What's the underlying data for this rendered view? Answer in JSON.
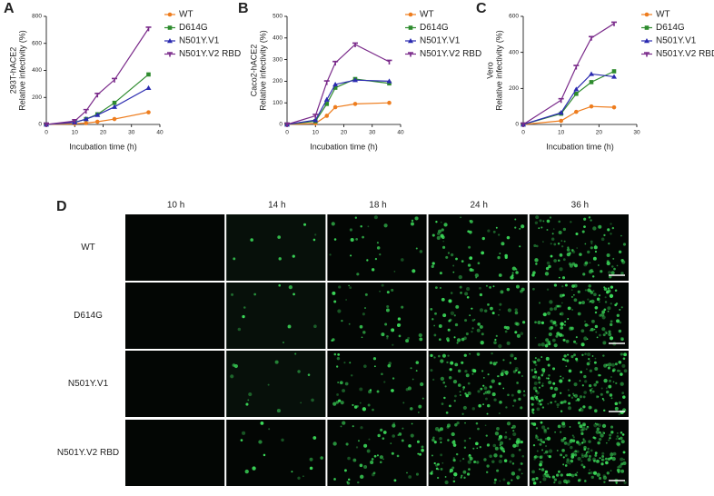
{
  "chart_data": [
    {
      "type": "line",
      "panel": "A",
      "xlabel": "Incubation time (h)",
      "ylabel": [
        "293T-hACE2",
        "Relative infectivity (%)"
      ],
      "x": [
        0,
        10,
        14,
        18,
        24,
        36
      ],
      "xlim": [
        0,
        40
      ],
      "xticks": [
        0,
        10,
        20,
        30,
        40
      ],
      "ylim": [
        0,
        800
      ],
      "yticks": [
        0,
        200,
        400,
        600,
        800
      ],
      "series": [
        {
          "name": "WT",
          "color": "#ee7d1e",
          "values": [
            0,
            5,
            10,
            20,
            40,
            90
          ]
        },
        {
          "name": "D614G",
          "color": "#2e8b2e",
          "values": [
            0,
            15,
            40,
            75,
            160,
            370
          ]
        },
        {
          "name": "N501Y.V1",
          "color": "#2b2bb0",
          "values": [
            0,
            15,
            40,
            70,
            130,
            270
          ]
        },
        {
          "name": "N501Y.V2 RBD",
          "color": "#7a2a8a",
          "values": [
            0,
            25,
            100,
            220,
            330,
            710
          ]
        }
      ]
    },
    {
      "type": "line",
      "panel": "B",
      "xlabel": "Incubation time (h)",
      "ylabel": [
        "Caco2-hACE2",
        "Relative infectivity (%)"
      ],
      "x": [
        0,
        10,
        14,
        17,
        24,
        36
      ],
      "xlim": [
        0,
        40
      ],
      "xticks": [
        0,
        10,
        20,
        30,
        40
      ],
      "ylim": [
        0,
        500
      ],
      "yticks": [
        0,
        100,
        200,
        300,
        400,
        500
      ],
      "series": [
        {
          "name": "WT",
          "color": "#ee7d1e",
          "values": [
            0,
            5,
            40,
            80,
            95,
            100
          ]
        },
        {
          "name": "D614G",
          "color": "#2e8b2e",
          "values": [
            0,
            15,
            95,
            170,
            210,
            190
          ]
        },
        {
          "name": "N501Y.V1",
          "color": "#2b2bb0",
          "values": [
            0,
            20,
            115,
            185,
            205,
            200
          ]
        },
        {
          "name": "N501Y.V2 RBD",
          "color": "#7a2a8a",
          "values": [
            0,
            40,
            195,
            285,
            370,
            290
          ]
        }
      ]
    },
    {
      "type": "line",
      "panel": "C",
      "xlabel": "Incubation time (h)",
      "ylabel": [
        "Vero",
        "Relative infectivity (%)"
      ],
      "x": [
        0,
        10,
        14,
        18,
        24
      ],
      "xlim": [
        0,
        30
      ],
      "xticks": [
        0,
        10,
        20,
        30
      ],
      "ylim": [
        0,
        600
      ],
      "yticks": [
        0,
        200,
        400,
        600
      ],
      "series": [
        {
          "name": "WT",
          "color": "#ee7d1e",
          "values": [
            0,
            20,
            70,
            100,
            95
          ]
        },
        {
          "name": "D614G",
          "color": "#2e8b2e",
          "values": [
            0,
            60,
            170,
            235,
            295
          ]
        },
        {
          "name": "N501Y.V1",
          "color": "#2b2bb0",
          "values": [
            0,
            65,
            195,
            280,
            265
          ]
        },
        {
          "name": "N501Y.V2 RBD",
          "color": "#7a2a8a",
          "values": [
            0,
            135,
            320,
            480,
            560
          ]
        }
      ]
    }
  ],
  "panel_d": {
    "panel": "D",
    "columns": [
      "10 h",
      "14 h",
      "18 h",
      "24 h",
      "36 h"
    ],
    "rows": [
      "WT",
      "D614G",
      "N501Y.V1",
      "N501Y.V2 RBD"
    ]
  }
}
